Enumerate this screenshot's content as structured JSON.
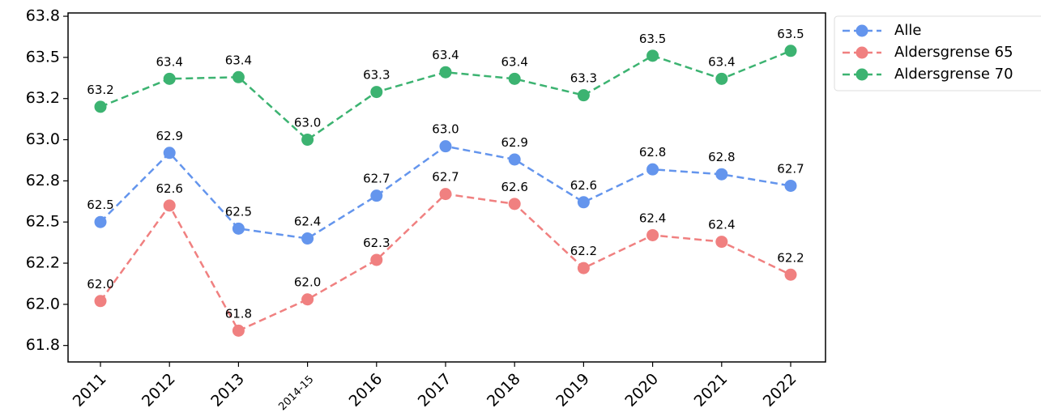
{
  "chart_data": {
    "type": "line",
    "categories": [
      "2011",
      "2012",
      "2013",
      "2014-15",
      "2016",
      "2017",
      "2018",
      "2019",
      "2020",
      "2021",
      "2022"
    ],
    "series": [
      {
        "name": "Alle",
        "color": "#6495ed",
        "values": [
          62.5,
          62.92,
          62.46,
          62.4,
          62.66,
          62.96,
          62.88,
          62.62,
          62.82,
          62.79,
          62.72
        ],
        "value_labels": [
          "62.5",
          "62.9",
          "62.5",
          "62.4",
          "62.7",
          "63.0",
          "62.9",
          "62.6",
          "62.8",
          "62.8",
          "62.7"
        ]
      },
      {
        "name": "Aldersgrense 65",
        "color": "#f08080",
        "values": [
          62.02,
          62.6,
          61.84,
          62.03,
          62.27,
          62.67,
          62.61,
          62.22,
          62.42,
          62.38,
          62.18
        ],
        "value_labels": [
          "62.0",
          "62.6",
          "61.8",
          "62.0",
          "62.3",
          "62.7",
          "62.6",
          "62.2",
          "62.4",
          "62.4",
          "62.2"
        ]
      },
      {
        "name": "Aldersgrense 70",
        "color": "#3cb371",
        "values": [
          63.2,
          63.37,
          63.38,
          63.0,
          63.29,
          63.41,
          63.37,
          63.27,
          63.51,
          63.37,
          63.54
        ],
        "value_labels": [
          "63.2",
          "63.4",
          "63.4",
          "63.0",
          "63.3",
          "63.4",
          "63.4",
          "63.3",
          "63.5",
          "63.4",
          "63.5"
        ]
      }
    ],
    "ylim": [
      61.65,
      63.77
    ],
    "yticks": [
      {
        "value": 61.75,
        "label": "61.8"
      },
      {
        "value": 62.0,
        "label": "62.0"
      },
      {
        "value": 62.25,
        "label": "62.2"
      },
      {
        "value": 62.5,
        "label": "62.5"
      },
      {
        "value": 62.75,
        "label": "62.8"
      },
      {
        "value": 63.0,
        "label": "63.0"
      },
      {
        "value": 63.25,
        "label": "63.2"
      },
      {
        "value": 63.5,
        "label": "63.5"
      },
      {
        "value": 63.75,
        "label": "63.8"
      }
    ],
    "line_style": "dashed",
    "legend": "outside upper right"
  }
}
